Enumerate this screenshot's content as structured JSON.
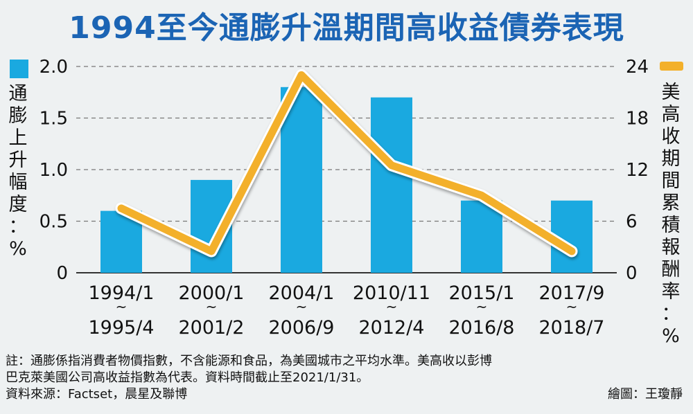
{
  "title": "1994至今通膨升溫期間高收益債券表現",
  "chart_data": {
    "type": "bar",
    "categories": [
      {
        "start": "1994/1",
        "sep": "~",
        "end": "1995/4"
      },
      {
        "start": "2000/1",
        "sep": "~",
        "end": "2001/2"
      },
      {
        "start": "2004/1",
        "sep": "~",
        "end": "2006/9"
      },
      {
        "start": "2010/11",
        "sep": "~",
        "end": "2012/4"
      },
      {
        "start": "2015/1",
        "sep": "~",
        "end": "2016/8"
      },
      {
        "start": "2017/9",
        "sep": "~",
        "end": "2018/7"
      }
    ],
    "series": [
      {
        "axis": "left",
        "kind": "bar",
        "color": "#1aa9e0",
        "values": [
          0.6,
          0.9,
          1.8,
          1.7,
          0.7,
          0.7
        ]
      },
      {
        "axis": "right",
        "kind": "line",
        "color": "#f3b02b",
        "values": [
          7.5,
          2.5,
          23,
          12.5,
          9,
          2.5
        ]
      }
    ],
    "ylabel_left": "通膨上升幅度：%",
    "ylabel_right": "美高收期間累積報酬率：%",
    "ylim_left": [
      0,
      2.0
    ],
    "ylim_right": [
      0,
      24
    ],
    "yticks_left": [
      "0",
      "0.5",
      "1.0",
      "1.5",
      "2.0"
    ],
    "yticks_right": [
      "0",
      "6",
      "12",
      "18",
      "24"
    ],
    "grid": true
  },
  "notes": [
    "註：通膨係指消費者物價指數，不含能源和食品，為美國城市之平均水準。美高收以彭博",
    "巴克萊美國公司高收益指數為代表。資料時間截止至2021/1/31。"
  ],
  "source": "資料來源：Factset，晨星及聯博",
  "credit": "繪圖：王瓊靜"
}
